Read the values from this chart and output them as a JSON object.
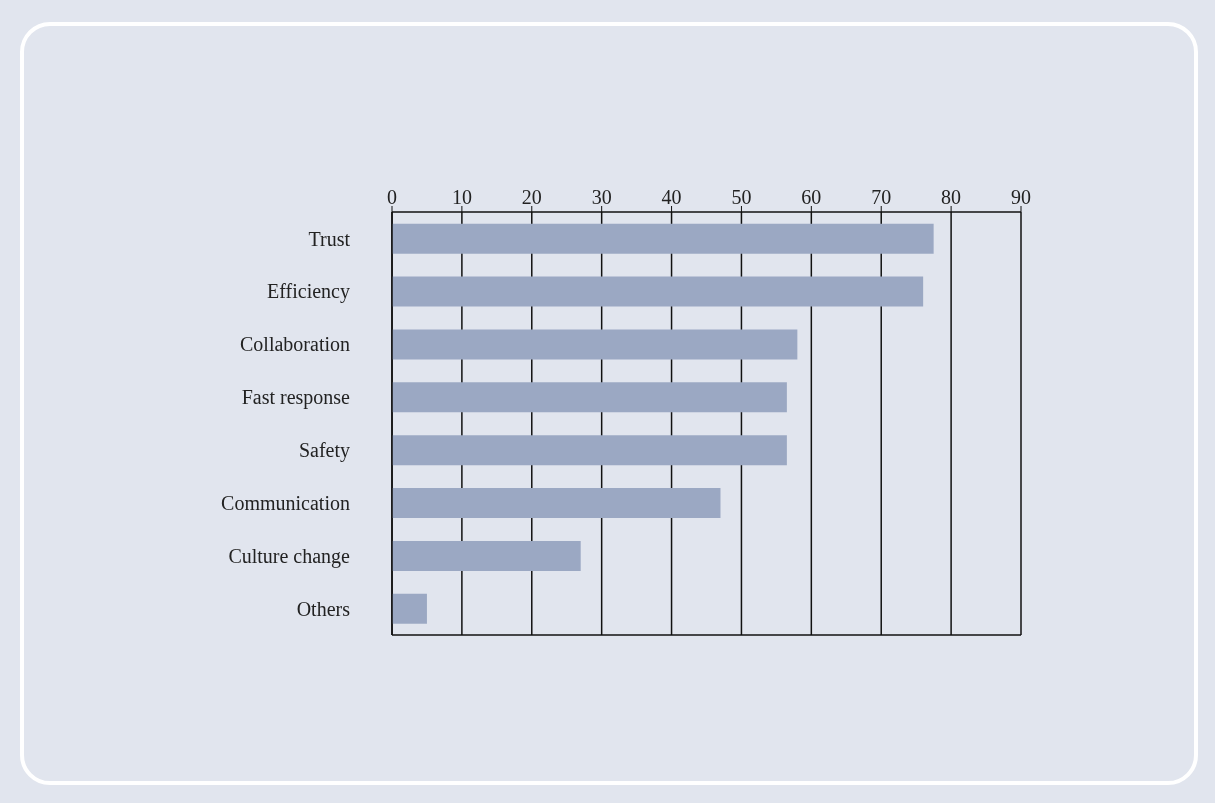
{
  "chart_data": {
    "type": "bar",
    "orientation": "horizontal",
    "categories": [
      "Trust",
      "Efficiency",
      "Collaboration",
      "Fast response",
      "Safety",
      "Communication",
      "Culture change",
      "Others"
    ],
    "values": [
      77.5,
      76,
      58,
      56.5,
      56.5,
      47,
      27,
      5
    ],
    "color": "#9ba8c3",
    "xlim": [
      0,
      90
    ],
    "xticks": [
      0,
      10,
      20,
      30,
      40,
      50,
      60,
      70,
      80,
      90
    ],
    "grid": "x"
  }
}
